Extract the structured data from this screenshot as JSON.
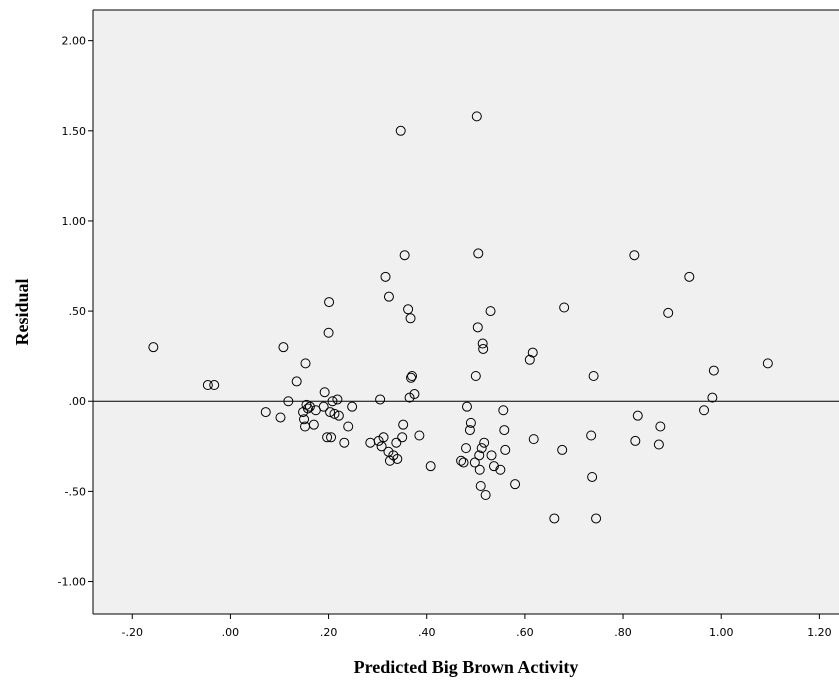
{
  "chart_data": {
    "type": "scatter",
    "title": "",
    "xlabel": "Predicted Big Brown Activity",
    "ylabel": "Residual",
    "xlim": [
      -0.28,
      1.24
    ],
    "ylim": [
      -1.18,
      2.17
    ],
    "xticks": [
      -0.2,
      0.0,
      0.2,
      0.4,
      0.6,
      0.8,
      1.0,
      1.2
    ],
    "xtick_labels": [
      "-.20",
      ".00",
      ".20",
      ".40",
      ".60",
      ".80",
      "1.00",
      "1.20"
    ],
    "yticks": [
      -1.0,
      -0.5,
      0.0,
      0.5,
      1.0,
      1.5,
      2.0
    ],
    "ytick_labels": [
      "-1.00",
      "-.50",
      ".00",
      ".50",
      "1.00",
      "1.50",
      "2.00"
    ],
    "reference_line_y": 0,
    "grid": false,
    "colors": {
      "plot_background": "#f0f0f0",
      "marker_stroke": "#000000",
      "axis": "#000000"
    },
    "points": [
      [
        -0.157,
        0.3
      ],
      [
        -0.046,
        0.09
      ],
      [
        -0.033,
        0.09
      ],
      [
        0.072,
        -0.06
      ],
      [
        0.102,
        -0.09
      ],
      [
        0.108,
        0.3
      ],
      [
        0.118,
        0.0
      ],
      [
        0.135,
        0.11
      ],
      [
        0.148,
        -0.06
      ],
      [
        0.15,
        -0.1
      ],
      [
        0.152,
        -0.14
      ],
      [
        0.153,
        0.21
      ],
      [
        0.155,
        -0.02
      ],
      [
        0.158,
        -0.04
      ],
      [
        0.162,
        -0.03
      ],
      [
        0.17,
        -0.13
      ],
      [
        0.174,
        -0.05
      ],
      [
        0.19,
        -0.03
      ],
      [
        0.192,
        0.05
      ],
      [
        0.197,
        -0.2
      ],
      [
        0.2,
        0.38
      ],
      [
        0.201,
        0.55
      ],
      [
        0.203,
        -0.06
      ],
      [
        0.205,
        -0.2
      ],
      [
        0.208,
        0.0
      ],
      [
        0.212,
        -0.07
      ],
      [
        0.218,
        0.01
      ],
      [
        0.221,
        -0.08
      ],
      [
        0.232,
        -0.23
      ],
      [
        0.24,
        -0.14
      ],
      [
        0.248,
        -0.03
      ],
      [
        0.285,
        -0.23
      ],
      [
        0.302,
        -0.22
      ],
      [
        0.305,
        0.01
      ],
      [
        0.308,
        -0.25
      ],
      [
        0.312,
        -0.2
      ],
      [
        0.316,
        0.69
      ],
      [
        0.322,
        -0.28
      ],
      [
        0.323,
        0.58
      ],
      [
        0.325,
        -0.33
      ],
      [
        0.332,
        -0.3
      ],
      [
        0.338,
        -0.23
      ],
      [
        0.34,
        -0.32
      ],
      [
        0.347,
        1.5
      ],
      [
        0.35,
        -0.2
      ],
      [
        0.352,
        -0.13
      ],
      [
        0.355,
        0.81
      ],
      [
        0.362,
        0.51
      ],
      [
        0.365,
        0.02
      ],
      [
        0.367,
        0.46
      ],
      [
        0.368,
        0.13
      ],
      [
        0.37,
        0.14
      ],
      [
        0.375,
        0.04
      ],
      [
        0.385,
        -0.19
      ],
      [
        0.408,
        -0.36
      ],
      [
        0.47,
        -0.33
      ],
      [
        0.475,
        -0.34
      ],
      [
        0.48,
        -0.26
      ],
      [
        0.482,
        -0.03
      ],
      [
        0.488,
        -0.16
      ],
      [
        0.49,
        -0.12
      ],
      [
        0.498,
        -0.34
      ],
      [
        0.5,
        0.14
      ],
      [
        0.502,
        1.58
      ],
      [
        0.504,
        0.41
      ],
      [
        0.505,
        0.82
      ],
      [
        0.507,
        -0.3
      ],
      [
        0.508,
        -0.38
      ],
      [
        0.51,
        -0.47
      ],
      [
        0.512,
        -0.26
      ],
      [
        0.514,
        0.32
      ],
      [
        0.515,
        0.29
      ],
      [
        0.517,
        -0.23
      ],
      [
        0.52,
        -0.52
      ],
      [
        0.53,
        0.5
      ],
      [
        0.532,
        -0.3
      ],
      [
        0.537,
        -0.36
      ],
      [
        0.55,
        -0.38
      ],
      [
        0.556,
        -0.05
      ],
      [
        0.558,
        -0.16
      ],
      [
        0.56,
        -0.27
      ],
      [
        0.58,
        -0.46
      ],
      [
        0.61,
        0.23
      ],
      [
        0.616,
        0.27
      ],
      [
        0.618,
        -0.21
      ],
      [
        0.66,
        -0.65
      ],
      [
        0.676,
        -0.27
      ],
      [
        0.68,
        0.52
      ],
      [
        0.735,
        -0.19
      ],
      [
        0.737,
        -0.42
      ],
      [
        0.74,
        0.14
      ],
      [
        0.745,
        -0.65
      ],
      [
        0.823,
        0.81
      ],
      [
        0.825,
        -0.22
      ],
      [
        0.83,
        -0.08
      ],
      [
        0.873,
        -0.24
      ],
      [
        0.876,
        -0.14
      ],
      [
        0.892,
        0.49
      ],
      [
        0.935,
        0.69
      ],
      [
        0.965,
        -0.05
      ],
      [
        0.982,
        0.02
      ],
      [
        0.985,
        0.17
      ],
      [
        1.095,
        0.21
      ]
    ]
  }
}
